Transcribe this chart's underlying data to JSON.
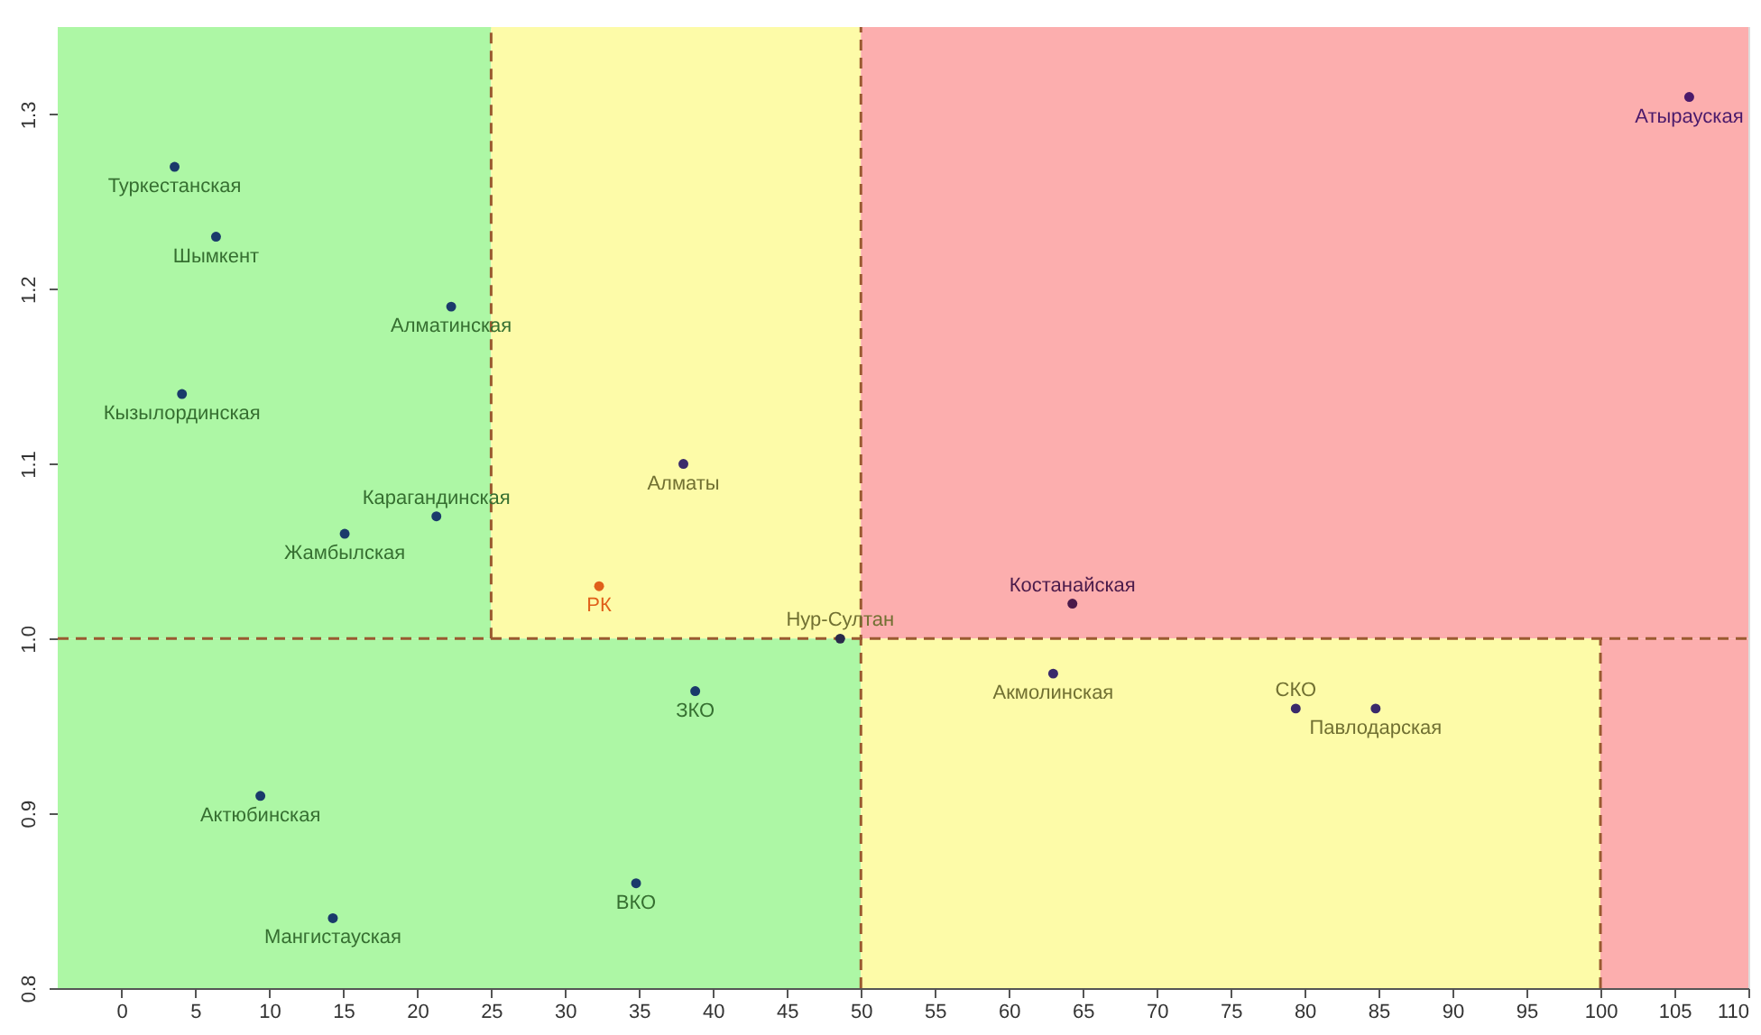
{
  "chart_data": {
    "type": "scatter",
    "xlim": [
      -4.3,
      110
    ],
    "ylim": [
      0.8,
      1.35
    ],
    "xticks": [
      0,
      5,
      10,
      15,
      20,
      25,
      30,
      35,
      40,
      45,
      50,
      55,
      60,
      65,
      70,
      75,
      80,
      85,
      90,
      95,
      100,
      105,
      110
    ],
    "yticks": [
      0.8,
      0.9,
      {
        "value": 1.0,
        "label": "1.0"
      },
      1.1,
      1.2,
      1.3
    ],
    "grid": false,
    "marker": "circle",
    "series": [
      {
        "name": "Туркестанская",
        "color": "#1a3a6b",
        "x": [
          3.6
        ],
        "values": [
          1.27
        ]
      },
      {
        "name": "Шымкент",
        "color": "#1a3a6b",
        "x": [
          6.4
        ],
        "values": [
          1.23
        ]
      },
      {
        "name": "Алматинская",
        "color": "#1a3a6b",
        "x": [
          22.3
        ],
        "values": [
          1.19
        ]
      },
      {
        "name": "Кызылординская",
        "color": "#1a3a6b",
        "x": [
          4.1
        ],
        "values": [
          1.14
        ]
      },
      {
        "name": "Алматы",
        "color": "#3a2a6b",
        "x": [
          38.0
        ],
        "values": [
          1.1
        ]
      },
      {
        "name": "Карагандинская",
        "color": "#1a3a6b",
        "x": [
          21.3
        ],
        "values": [
          1.07
        ]
      },
      {
        "name": "Жамбылская",
        "color": "#1a3a6b",
        "x": [
          15.1
        ],
        "values": [
          1.06
        ]
      },
      {
        "name": "РК",
        "color": "#e0601a",
        "x": [
          32.3
        ],
        "values": [
          1.03
        ]
      },
      {
        "name": "Нур-Султан",
        "color": "#2a2a4a",
        "x": [
          48.6
        ],
        "values": [
          1.0
        ]
      },
      {
        "name": "ЗКО",
        "color": "#1a3a6b",
        "x": [
          38.8
        ],
        "values": [
          0.97
        ]
      },
      {
        "name": "Актюбинская",
        "color": "#1a3a6b",
        "x": [
          9.4
        ],
        "values": [
          0.91
        ]
      },
      {
        "name": "ВКО",
        "color": "#1a3a6b",
        "x": [
          34.8
        ],
        "values": [
          0.86
        ]
      },
      {
        "name": "Мангистауская",
        "color": "#1a3a6b",
        "x": [
          14.3
        ],
        "values": [
          0.84
        ]
      },
      {
        "name": "Костанайская",
        "color": "#4a1a4a",
        "x": [
          64.3
        ],
        "values": [
          1.02
        ]
      },
      {
        "name": "Акмолинская",
        "color": "#3a2a6b",
        "x": [
          63.0
        ],
        "values": [
          0.98
        ]
      },
      {
        "name": "СКО",
        "color": "#3a2a6b",
        "x": [
          79.4
        ],
        "values": [
          0.96
        ]
      },
      {
        "name": "Павлодарская",
        "color": "#3a2a6b",
        "x": [
          84.8
        ],
        "values": [
          0.96
        ]
      },
      {
        "name": "Атырауская",
        "color": "#4a1a6b",
        "x": [
          106.0
        ],
        "values": [
          1.31
        ]
      }
    ],
    "ref_lines": [
      {
        "axis": "y",
        "value": 1.0,
        "color": "#9a5a30",
        "line_style": "dashed"
      },
      {
        "axis": "x",
        "value": 25,
        "color": "#9a5a30",
        "line_style": "dashed"
      },
      {
        "axis": "x",
        "value": 50,
        "color": "#9a5a30",
        "line_style": "dashed"
      },
      {
        "axis": "x",
        "value": 100,
        "color": "#9a5a30",
        "line_style": "dashed"
      }
    ],
    "bands": [
      {
        "axis": "x",
        "from": -4.3,
        "to": 25,
        "color": "#adf7a5"
      },
      {
        "axis": "x",
        "from": 25,
        "to": 50,
        "color": "#fdfba8"
      },
      {
        "axis": "x",
        "from": 50,
        "to": 110,
        "color": "#fcaeae"
      },
      {
        "axis": "x",
        "from": -4.3,
        "to": 50,
        "color": "#adf7a5"
      },
      {
        "axis": "x",
        "from": 50,
        "to": 100,
        "color": "#fdfba8"
      },
      {
        "axis": "x",
        "from": 100,
        "to": 110,
        "color": "#fcaeae"
      }
    ]
  }
}
